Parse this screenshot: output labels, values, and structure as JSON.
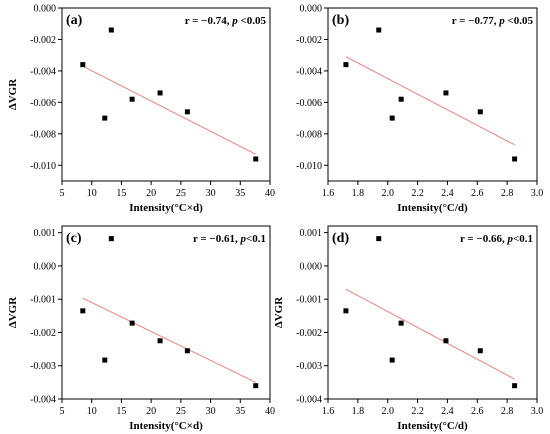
{
  "chart_data": [
    {
      "type": "scatter",
      "label": "(a)",
      "annotation": {
        "r": "r = −0.74, ",
        "p": "p",
        "p_rest": " <0.05"
      },
      "xlabel": "Intensity(°C×d)",
      "ylabel": "ΔVGR",
      "xlim": [
        5,
        40
      ],
      "ylim": [
        -0.011,
        0.0
      ],
      "xticks": [
        5,
        10,
        15,
        20,
        25,
        30,
        35,
        40
      ],
      "xtick_labels": [
        "5",
        "10",
        "15",
        "20",
        "25",
        "30",
        "35",
        "40"
      ],
      "yticks": [
        0.0,
        -0.002,
        -0.004,
        -0.006,
        -0.008,
        -0.01
      ],
      "ytick_labels": [
        "0.000",
        "-0.002",
        "-0.004",
        "-0.006",
        "-0.008",
        "-0.010"
      ],
      "points": [
        {
          "x": 8.5,
          "y": -0.0036
        },
        {
          "x": 12.2,
          "y": -0.007
        },
        {
          "x": 13.3,
          "y": -0.0014
        },
        {
          "x": 16.8,
          "y": -0.0058
        },
        {
          "x": 21.5,
          "y": -0.0054
        },
        {
          "x": 26.1,
          "y": -0.0066
        },
        {
          "x": 37.6,
          "y": -0.0096
        }
      ],
      "fit": {
        "x": [
          8.5,
          37.6
        ],
        "y": [
          -0.0037,
          -0.0093
        ]
      }
    },
    {
      "type": "scatter",
      "label": "(b)",
      "annotation": {
        "r": "r = −0.77, ",
        "p": "p",
        "p_rest": " <0.05"
      },
      "xlabel": "Intensity(°C/d)",
      "ylabel": "",
      "xlim": [
        1.6,
        3.0
      ],
      "ylim": [
        -0.011,
        0.0
      ],
      "xticks": [
        1.6,
        1.8,
        2.0,
        2.2,
        2.4,
        2.6,
        2.8,
        3.0
      ],
      "xtick_labels": [
        "1.6",
        "1.8",
        "2.0",
        "2.2",
        "2.4",
        "2.6",
        "2.8",
        "3.0"
      ],
      "yticks": [
        0.0,
        -0.002,
        -0.004,
        -0.006,
        -0.008,
        -0.01
      ],
      "ytick_labels": [
        "0.000",
        "-0.002",
        "-0.004",
        "-0.006",
        "-0.008",
        "-0.010"
      ],
      "points": [
        {
          "x": 1.72,
          "y": -0.0036
        },
        {
          "x": 1.94,
          "y": -0.0014
        },
        {
          "x": 2.03,
          "y": -0.007
        },
        {
          "x": 2.09,
          "y": -0.0058
        },
        {
          "x": 2.39,
          "y": -0.0054
        },
        {
          "x": 2.62,
          "y": -0.0066
        },
        {
          "x": 2.85,
          "y": -0.0096
        }
      ],
      "fit": {
        "x": [
          1.72,
          2.85
        ],
        "y": [
          -0.0031,
          -0.0087
        ]
      }
    },
    {
      "type": "scatter",
      "label": "(c)",
      "annotation": {
        "r": "r = −0.61, ",
        "p": "p",
        "p_rest": "<0.1"
      },
      "xlabel": "Intensity(°C×d)",
      "ylabel": "ΔVGR",
      "xlim": [
        5,
        40
      ],
      "ylim": [
        -0.004,
        0.0012
      ],
      "xticks": [
        5,
        10,
        15,
        20,
        25,
        30,
        35,
        40
      ],
      "xtick_labels": [
        "5",
        "10",
        "15",
        "20",
        "25",
        "30",
        "35",
        "40"
      ],
      "yticks": [
        0.001,
        0.0,
        -0.001,
        -0.002,
        -0.003,
        -0.004
      ],
      "ytick_labels": [
        "0.001",
        "0.000",
        "-0.001",
        "-0.002",
        "-0.003",
        "-0.004"
      ],
      "points": [
        {
          "x": 8.5,
          "y": -0.00135
        },
        {
          "x": 12.2,
          "y": -0.00283
        },
        {
          "x": 13.3,
          "y": 0.00082
        },
        {
          "x": 16.8,
          "y": -0.00172
        },
        {
          "x": 21.5,
          "y": -0.00225
        },
        {
          "x": 26.1,
          "y": -0.00255
        },
        {
          "x": 37.6,
          "y": -0.0036
        }
      ],
      "fit": {
        "x": [
          8.5,
          37.6
        ],
        "y": [
          -0.00097,
          -0.0035
        ]
      }
    },
    {
      "type": "scatter",
      "label": "(d)",
      "annotation": {
        "r": "r = −0.66, ",
        "p": "p",
        "p_rest": "<0.1"
      },
      "xlabel": "Intensity(°C/d)",
      "ylabel": "ΔVGR",
      "xlim": [
        1.6,
        3.0
      ],
      "ylim": [
        -0.004,
        0.0012
      ],
      "xticks": [
        1.6,
        1.8,
        2.0,
        2.2,
        2.4,
        2.6,
        2.8,
        3.0
      ],
      "xtick_labels": [
        "1.6",
        "1.8",
        "2.0",
        "2.2",
        "2.4",
        "2.6",
        "2.8",
        "3.0"
      ],
      "yticks": [
        0.001,
        0.0,
        -0.001,
        -0.002,
        -0.003,
        -0.004
      ],
      "ytick_labels": [
        "0.001",
        "0.000",
        "-0.001",
        "-0.002",
        "-0.003",
        "-0.004"
      ],
      "points": [
        {
          "x": 1.72,
          "y": -0.00135
        },
        {
          "x": 1.94,
          "y": 0.00082
        },
        {
          "x": 2.03,
          "y": -0.00283
        },
        {
          "x": 2.09,
          "y": -0.00172
        },
        {
          "x": 2.39,
          "y": -0.00225
        },
        {
          "x": 2.62,
          "y": -0.00255
        },
        {
          "x": 2.85,
          "y": -0.0036
        }
      ],
      "fit": {
        "x": [
          1.72,
          2.85
        ],
        "y": [
          -0.0007,
          -0.0034
        ]
      }
    }
  ],
  "colors": {
    "points": "#000000",
    "fit_line": "#f08080"
  }
}
